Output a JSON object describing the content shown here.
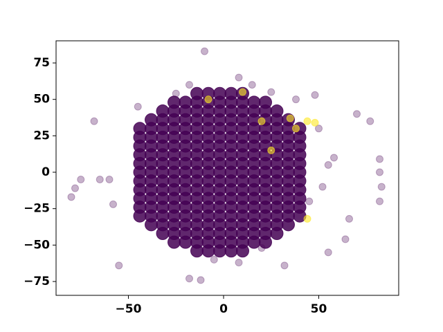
{
  "chart_data": {
    "type": "scatter",
    "xlim": [
      -88,
      92
    ],
    "ylim": [
      -84.5,
      90.2
    ],
    "xticks": [
      {
        "value": -50,
        "label": "−50"
      },
      0,
      50
    ],
    "yticks": [
      {
        "value": -75,
        "label": "−75"
      },
      {
        "value": -50,
        "label": "−50"
      },
      {
        "value": -25,
        "label": "−25"
      },
      0,
      25,
      50,
      75
    ],
    "series": [
      {
        "color": "#440154",
        "alpha": 0.85,
        "x": [
          -14,
          -8,
          -2,
          4,
          10,
          -26,
          -20,
          -14,
          -8,
          -2,
          4,
          10,
          16,
          22,
          -32,
          -26,
          -20,
          -14,
          -8,
          -2,
          4,
          10,
          16,
          22,
          28,
          -38,
          -32,
          -26,
          -20,
          -14,
          -8,
          -2,
          4,
          10,
          16,
          22,
          28,
          34,
          -44,
          -38,
          -32,
          -26,
          -20,
          -14,
          -8,
          -2,
          4,
          10,
          16,
          22,
          28,
          34,
          40,
          -44,
          -38,
          -32,
          -26,
          -20,
          -14,
          -8,
          -2,
          4,
          10,
          16,
          22,
          28,
          34,
          40,
          -44,
          -38,
          -32,
          -26,
          -20,
          -14,
          -8,
          -2,
          4,
          10,
          16,
          22,
          28,
          34,
          40,
          -44,
          -38,
          -32,
          -26,
          -20,
          -14,
          -8,
          -2,
          4,
          10,
          16,
          22,
          28,
          34,
          40,
          -44,
          -38,
          -32,
          -26,
          -20,
          -14,
          -8,
          -2,
          4,
          10,
          16,
          22,
          28,
          34,
          40,
          -44,
          -38,
          -32,
          -26,
          -20,
          -14,
          -8,
          -2,
          4,
          10,
          16,
          22,
          28,
          34,
          40,
          -44,
          -38,
          -32,
          -26,
          -20,
          -14,
          -8,
          -2,
          4,
          10,
          16,
          22,
          28,
          34,
          40,
          -44,
          -38,
          -32,
          -26,
          -20,
          -14,
          -8,
          -2,
          4,
          10,
          16,
          22,
          28,
          34,
          40,
          -44,
          -38,
          -32,
          -26,
          -20,
          -14,
          -8,
          -2,
          4,
          10,
          16,
          22,
          28,
          34,
          40,
          -44,
          -38,
          -32,
          -26,
          -20,
          -14,
          -8,
          -2,
          4,
          10,
          16,
          22,
          28,
          34,
          40,
          -44,
          -38,
          -32,
          -26,
          -20,
          -14,
          -8,
          -2,
          4,
          10,
          16,
          22,
          28,
          34,
          40,
          -38,
          -32,
          -26,
          -20,
          -14,
          -8,
          -2,
          4,
          10,
          16,
          22,
          28,
          34,
          -32,
          -26,
          -20,
          -14,
          -8,
          -2,
          4,
          10,
          16,
          22,
          28,
          -26,
          -20,
          -14,
          -8,
          -2,
          4,
          10,
          16,
          22,
          -14,
          -8,
          -2,
          4,
          10
        ],
        "values": [
          54,
          54,
          54,
          54,
          54,
          48,
          48,
          48,
          48,
          48,
          48,
          48,
          48,
          48,
          42,
          42,
          42,
          42,
          42,
          42,
          42,
          42,
          42,
          42,
          42,
          36,
          36,
          36,
          36,
          36,
          36,
          36,
          36,
          36,
          36,
          36,
          36,
          36,
          30,
          30,
          30,
          30,
          30,
          30,
          30,
          30,
          30,
          30,
          30,
          30,
          30,
          30,
          30,
          24,
          24,
          24,
          24,
          24,
          24,
          24,
          24,
          24,
          24,
          24,
          24,
          24,
          24,
          24,
          18,
          18,
          18,
          18,
          18,
          18,
          18,
          18,
          18,
          18,
          18,
          18,
          18,
          18,
          18,
          12,
          12,
          12,
          12,
          12,
          12,
          12,
          12,
          12,
          12,
          12,
          12,
          12,
          12,
          12,
          6,
          6,
          6,
          6,
          6,
          6,
          6,
          6,
          6,
          6,
          6,
          6,
          6,
          6,
          6,
          0,
          0,
          0,
          0,
          0,
          0,
          0,
          0,
          0,
          0,
          0,
          0,
          0,
          0,
          0,
          -6,
          -6,
          -6,
          -6,
          -6,
          -6,
          -6,
          -6,
          -6,
          -6,
          -6,
          -6,
          -6,
          -6,
          -6,
          -12,
          -12,
          -12,
          -12,
          -12,
          -12,
          -12,
          -12,
          -12,
          -12,
          -12,
          -12,
          -12,
          -12,
          -12,
          -18,
          -18,
          -18,
          -18,
          -18,
          -18,
          -18,
          -18,
          -18,
          -18,
          -18,
          -18,
          -18,
          -18,
          -18,
          -24,
          -24,
          -24,
          -24,
          -24,
          -24,
          -24,
          -24,
          -24,
          -24,
          -24,
          -24,
          -24,
          -24,
          -24,
          -30,
          -30,
          -30,
          -30,
          -30,
          -30,
          -30,
          -30,
          -30,
          -30,
          -30,
          -30,
          -30,
          -30,
          -30,
          -36,
          -36,
          -36,
          -36,
          -36,
          -36,
          -36,
          -36,
          -36,
          -36,
          -36,
          -36,
          -36,
          -42,
          -42,
          -42,
          -42,
          -42,
          -42,
          -42,
          -42,
          -42,
          -42,
          -42,
          -48,
          -48,
          -48,
          -48,
          -48,
          -48,
          -48,
          -48,
          -48,
          -54,
          -54,
          -54,
          -54,
          -54
        ]
      },
      {
        "color": "#440154",
        "alpha": 0.3,
        "x": [
          -10,
          -68,
          -75,
          -78,
          -80,
          -55,
          32,
          48,
          70,
          77,
          82,
          82,
          83,
          82,
          66,
          64,
          55,
          52,
          55,
          58,
          50,
          -12,
          -18,
          -5,
          8,
          20,
          -60,
          -65,
          -58,
          15,
          8,
          -18,
          -25,
          45,
          -45,
          38,
          25
        ],
        "values": [
          83,
          35,
          -5,
          -11,
          -17,
          -64,
          -64,
          53,
          40,
          35,
          9,
          0,
          -10,
          -20,
          -32,
          -46,
          -55,
          -10,
          5,
          10,
          30,
          -74,
          -73,
          -60,
          -62,
          -52,
          -5,
          -5,
          -22,
          60,
          65,
          60,
          54,
          -20,
          45,
          50,
          55
        ]
      },
      {
        "color": "#fde725",
        "alpha": 0.6,
        "x": [
          44,
          38,
          48,
          35,
          -8,
          44,
          25,
          10,
          20
        ],
        "values": [
          35,
          30,
          34,
          37,
          50,
          -32,
          15,
          55,
          35
        ]
      }
    ]
  }
}
